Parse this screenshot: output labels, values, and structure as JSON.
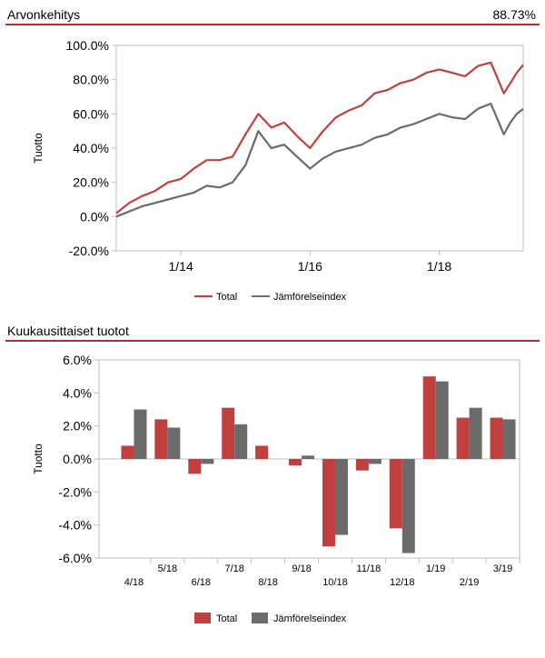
{
  "sections": {
    "performance": {
      "title": "Arvonkehitys",
      "value": "88.73%"
    },
    "monthly": {
      "title": "Kuukausittaiset tuotot"
    }
  },
  "colors": {
    "total": "#c0403f",
    "benchmark": "#6b6b6b",
    "accent": "#b03030",
    "grid": "#bfbfbf"
  },
  "chart_data": [
    {
      "type": "line",
      "title": "Arvonkehitys",
      "xlabel": "",
      "ylabel": "Tuotto",
      "ylim": [
        -20,
        100
      ],
      "y_ticks": [
        "100.0%",
        "80.0%",
        "60.0%",
        "40.0%",
        "20.0%",
        "0.0%",
        "-20.0%"
      ],
      "y_tick_values": [
        100,
        80,
        60,
        40,
        20,
        0,
        -20
      ],
      "x_ticks": [
        "1/14",
        "1/16",
        "1/18"
      ],
      "x_tick_values": [
        2014.0,
        2016.0,
        2018.0
      ],
      "xlim": [
        2013.0,
        2019.3
      ],
      "legend": [
        "Total",
        "Jämförelseindex"
      ],
      "series": [
        {
          "name": "Total",
          "x": [
            2013.0,
            2013.2,
            2013.4,
            2013.6,
            2013.8,
            2014.0,
            2014.2,
            2014.4,
            2014.6,
            2014.8,
            2015.0,
            2015.2,
            2015.4,
            2015.6,
            2015.8,
            2016.0,
            2016.2,
            2016.4,
            2016.6,
            2016.8,
            2017.0,
            2017.2,
            2017.4,
            2017.6,
            2017.8,
            2018.0,
            2018.2,
            2018.4,
            2018.6,
            2018.8,
            2019.0,
            2019.1,
            2019.2,
            2019.3
          ],
          "values": [
            2,
            8,
            12,
            15,
            20,
            22,
            28,
            33,
            33,
            35,
            48,
            60,
            52,
            55,
            47,
            40,
            50,
            58,
            62,
            65,
            72,
            74,
            78,
            80,
            84,
            86,
            84,
            82,
            88,
            90,
            72,
            78,
            84,
            88.7
          ]
        },
        {
          "name": "Jämförelseindex",
          "x": [
            2013.0,
            2013.2,
            2013.4,
            2013.6,
            2013.8,
            2014.0,
            2014.2,
            2014.4,
            2014.6,
            2014.8,
            2015.0,
            2015.2,
            2015.4,
            2015.6,
            2015.8,
            2016.0,
            2016.2,
            2016.4,
            2016.6,
            2016.8,
            2017.0,
            2017.2,
            2017.4,
            2017.6,
            2017.8,
            2018.0,
            2018.2,
            2018.4,
            2018.6,
            2018.8,
            2019.0,
            2019.1,
            2019.2,
            2019.3
          ],
          "values": [
            0,
            3,
            6,
            8,
            10,
            12,
            14,
            18,
            17,
            20,
            30,
            50,
            40,
            42,
            35,
            28,
            34,
            38,
            40,
            42,
            46,
            48,
            52,
            54,
            57,
            60,
            58,
            57,
            63,
            66,
            48,
            55,
            60,
            63
          ]
        }
      ]
    },
    {
      "type": "bar",
      "title": "Kuukausittaiset tuotot",
      "xlabel": "",
      "ylabel": "Tuotto",
      "ylim": [
        -6,
        6
      ],
      "y_ticks": [
        "6.0%",
        "4.0%",
        "2.0%",
        "0.0%",
        "-2.0%",
        "-4.0%",
        "-6.0%"
      ],
      "y_tick_values": [
        6,
        4,
        2,
        0,
        -2,
        -4,
        -6
      ],
      "categories": [
        "4/18",
        "5/18",
        "6/18",
        "7/18",
        "8/18",
        "9/18",
        "10/18",
        "11/18",
        "12/18",
        "1/19",
        "2/19",
        "3/19"
      ],
      "legend": [
        "Total",
        "Jämförelseindex"
      ],
      "series": [
        {
          "name": "Total",
          "values": [
            0.8,
            2.4,
            -0.9,
            3.1,
            0.8,
            -0.4,
            -5.3,
            -0.7,
            -4.2,
            5.0,
            2.5,
            2.5
          ]
        },
        {
          "name": "Jämförelseindex",
          "values": [
            3.0,
            1.9,
            -0.3,
            2.1,
            0.0,
            0.2,
            -4.6,
            -0.3,
            -5.7,
            4.7,
            3.1,
            2.4
          ]
        }
      ]
    }
  ]
}
